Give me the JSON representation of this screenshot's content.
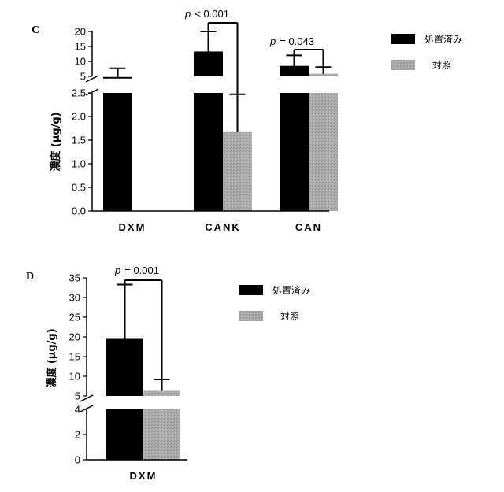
{
  "colors": {
    "treated": "#000000",
    "control": "#a8a8a8"
  },
  "chart_data": [
    {
      "panel_label": "C",
      "type": "bar",
      "ylabel": "濃度 (",
      "ylabel_symbol": "µ",
      "ylabel_unit": "g/g)",
      "categories": [
        "DXM",
        "CANK",
        "CAN"
      ],
      "axis_breaks": true,
      "ylim_lower": [
        0,
        2.5
      ],
      "ylim_upper": [
        5,
        20
      ],
      "yticks_lower": [
        "0.0",
        "0.5",
        "1.0",
        "1.5",
        "2.0",
        "2.5"
      ],
      "yticks_upper": [
        "5",
        "10",
        "15",
        "20"
      ],
      "series": [
        {
          "name": "処置済み",
          "values": [
            4.8,
            13.3,
            8.5
          ],
          "error": [
            2.9,
            6.7,
            3.5
          ]
        },
        {
          "name": "対照",
          "values": [
            null,
            1.67,
            5.9
          ],
          "error": [
            null,
            0.8,
            2.2
          ]
        }
      ],
      "annotations": [
        {
          "category": "CANK",
          "p": "p",
          "text": "< 0.001"
        },
        {
          "category": "CAN",
          "p": "p",
          "text": "= 0.043"
        }
      ],
      "legend_position": "right"
    },
    {
      "panel_label": "D",
      "type": "bar",
      "ylabel": "濃度 (",
      "ylabel_symbol": "µ",
      "ylabel_unit": "g/g)",
      "categories": [
        "DXM"
      ],
      "axis_breaks": true,
      "ylim_lower": [
        0,
        4
      ],
      "ylim_upper": [
        5,
        35
      ],
      "yticks_lower": [
        "0",
        "2",
        "4"
      ],
      "yticks_upper": [
        "5",
        "10",
        "15",
        "20",
        "25",
        "30",
        "35"
      ],
      "series": [
        {
          "name": "処置済み",
          "values": [
            19.5
          ],
          "error": [
            13.8
          ]
        },
        {
          "name": "対照",
          "values": [
            6.3
          ],
          "error": [
            2.9
          ]
        }
      ],
      "annotations": [
        {
          "category": "DXM",
          "p": "p",
          "text": "= 0.001"
        }
      ],
      "legend_position": "right"
    }
  ]
}
